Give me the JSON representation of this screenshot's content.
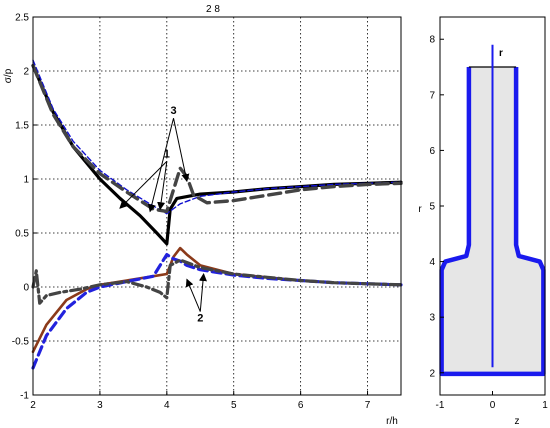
{
  "chart_data": [
    {
      "type": "line",
      "title": "2 8",
      "xlabel": "r/h",
      "ylabel": "σ/p",
      "xlim": [
        2,
        7.5
      ],
      "ylim": [
        -1,
        2.5
      ],
      "xticks": [
        "2",
        "3",
        "4",
        "5",
        "6",
        "7"
      ],
      "yticks": [
        "2.5",
        "2",
        "1.5",
        "1",
        "0.5",
        "0",
        "-0.5",
        "-1"
      ],
      "grid": "dotted",
      "series": [
        {
          "style": "solid black thick",
          "color": "#000000",
          "x": [
            2.0,
            2.3,
            2.6,
            3.0,
            3.3,
            3.6,
            3.85,
            4.0,
            4.05,
            4.15,
            4.5,
            5.0,
            5.5,
            6.0,
            6.5,
            7.0,
            7.5
          ],
          "y": [
            2.05,
            1.62,
            1.3,
            1.0,
            0.82,
            0.66,
            0.5,
            0.4,
            0.72,
            0.82,
            0.86,
            0.88,
            0.91,
            0.93,
            0.95,
            0.96,
            0.97
          ]
        },
        {
          "style": "dashed blue thin",
          "color": "#1010d0",
          "x": [
            2.0,
            2.3,
            2.6,
            3.0,
            3.4,
            3.8,
            4.0,
            4.2,
            4.5,
            5.0,
            5.5,
            6.0,
            6.5,
            7.0,
            7.5
          ],
          "y": [
            2.1,
            1.65,
            1.35,
            1.08,
            0.9,
            0.75,
            0.68,
            0.77,
            0.84,
            0.88,
            0.91,
            0.93,
            0.95,
            0.96,
            0.97
          ]
        },
        {
          "style": "dashed dark grey thick",
          "color": "#444444",
          "x": [
            2.0,
            2.3,
            2.6,
            3.0,
            3.4,
            3.8,
            4.0,
            4.1,
            4.2,
            4.3,
            4.4,
            4.6,
            5.0,
            5.5,
            6.0,
            6.5,
            7.0,
            7.5
          ],
          "y": [
            2.05,
            1.6,
            1.3,
            1.05,
            0.88,
            0.72,
            0.7,
            0.9,
            1.1,
            1.02,
            0.85,
            0.78,
            0.8,
            0.85,
            0.9,
            0.93,
            0.95,
            0.96
          ]
        },
        {
          "style": "solid brown",
          "color": "#8b3a1a",
          "x": [
            2.0,
            2.2,
            2.5,
            2.8,
            3.0,
            3.4,
            3.8,
            4.0,
            4.1,
            4.2,
            4.3,
            4.5,
            5.0,
            5.5,
            6.0,
            6.5,
            7.0,
            7.5
          ],
          "y": [
            -0.6,
            -0.35,
            -0.12,
            -0.02,
            0.02,
            0.06,
            0.1,
            0.12,
            0.28,
            0.36,
            0.3,
            0.2,
            0.12,
            0.09,
            0.06,
            0.04,
            0.03,
            0.02
          ]
        },
        {
          "style": "dashed blue thick",
          "color": "#2222dd",
          "x": [
            2.0,
            2.2,
            2.5,
            2.8,
            3.0,
            3.4,
            3.8,
            4.0,
            4.1,
            4.2,
            4.3,
            4.5,
            5.0,
            5.5,
            6.0,
            6.5,
            7.0,
            7.5
          ],
          "y": [
            -0.75,
            -0.45,
            -0.2,
            -0.05,
            0.0,
            0.05,
            0.1,
            0.3,
            0.26,
            0.24,
            0.2,
            0.16,
            0.11,
            0.08,
            0.06,
            0.04,
            0.03,
            0.02
          ]
        },
        {
          "style": "dash-dot dark grey thick",
          "color": "#444444",
          "x": [
            2.0,
            2.05,
            2.1,
            2.2,
            2.4,
            2.7,
            3.0,
            3.4,
            3.7,
            3.9,
            4.0,
            4.05,
            4.2,
            4.5,
            5.0,
            5.5,
            6.0,
            6.5,
            7.0,
            7.5
          ],
          "y": [
            0.0,
            0.15,
            -0.15,
            -0.08,
            -0.05,
            -0.02,
            0.02,
            0.05,
            0.0,
            -0.05,
            -0.1,
            0.2,
            0.25,
            0.18,
            0.12,
            0.09,
            0.06,
            0.04,
            0.03,
            0.02
          ]
        }
      ],
      "annotations": [
        {
          "text": "1",
          "x": 4.0,
          "y": 1.2
        },
        {
          "text": "2",
          "x": 4.5,
          "y": -0.32
        },
        {
          "text": "3",
          "x": 4.1,
          "y": 1.6
        }
      ]
    },
    {
      "type": "diagram",
      "xlabel": "z",
      "ylabel": "r",
      "xlim": [
        -1,
        1
      ],
      "ylim": [
        1.6,
        8.4
      ],
      "xticks": [
        "-1",
        "0",
        "1"
      ],
      "yticks": [
        "8",
        "7",
        "6",
        "5",
        "4",
        "3",
        "2"
      ],
      "axis_label": "r",
      "outline_color": "#1a1aee",
      "fill_color": "#e6e6e6",
      "outline": {
        "z": [
          -0.45,
          -0.45,
          -0.5,
          -0.9,
          -0.97,
          -0.97,
          0.97,
          0.97,
          0.9,
          0.5,
          0.45,
          0.45
        ],
        "r": [
          7.5,
          4.3,
          4.1,
          4.0,
          3.85,
          1.98,
          1.98,
          3.85,
          4.0,
          4.1,
          4.3,
          7.5
        ]
      },
      "top_edge": {
        "z": [
          -0.45,
          0.45
        ],
        "r": 7.5
      },
      "axis_line": {
        "z": 0,
        "r": [
          2.1,
          7.9
        ]
      }
    }
  ]
}
